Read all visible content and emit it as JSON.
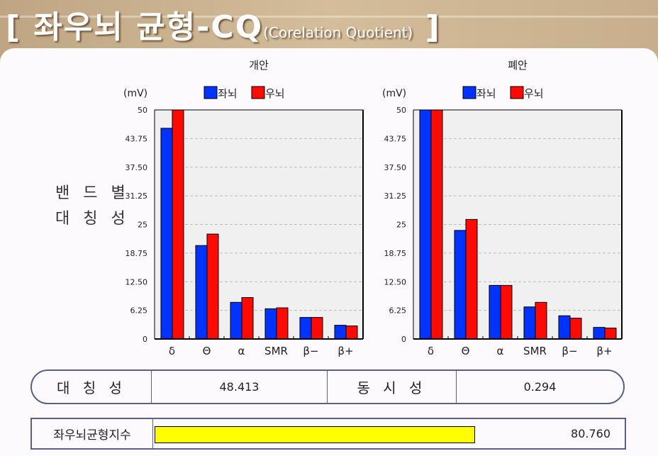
{
  "header": {
    "title_main": "[ 좌우뇌 균형-CQ",
    "title_sub": "(Corelation Quotient)",
    "title_end": " ]"
  },
  "side_label": {
    "line1": "밴 드 별",
    "line2": "대 칭 성"
  },
  "colors": {
    "left": "#0033ff",
    "right": "#ff0a00",
    "plot_bg": "#f0f0f0",
    "index_bar": "#ffff00"
  },
  "chart_data": [
    {
      "type": "bar",
      "title": "개안",
      "ylabel": "(mV)",
      "ylim": [
        0,
        50
      ],
      "grid": true,
      "yticks": [
        "0",
        "6.25",
        "12.50",
        "18.75",
        "25",
        "31.25",
        "37.50",
        "43.75",
        "50"
      ],
      "categories": [
        "δ",
        "Θ",
        "α",
        "SMR",
        "β−",
        "β+"
      ],
      "legend": [
        "좌뇌",
        "우뇌"
      ],
      "series": [
        {
          "name": "좌뇌",
          "values": [
            46.0,
            20.4,
            8.0,
            6.6,
            4.7,
            3.0
          ]
        },
        {
          "name": "우뇌",
          "values": [
            50,
            22.9,
            9.05,
            6.8,
            4.7,
            2.85
          ]
        }
      ]
    },
    {
      "type": "bar",
      "title": "폐안",
      "ylabel": "(mV)",
      "ylim": [
        0,
        50
      ],
      "grid": true,
      "yticks": [
        "0",
        "6.25",
        "12.50",
        "18.75",
        "25",
        "31.25",
        "37.50",
        "43.75",
        "50"
      ],
      "categories": [
        "δ",
        "Θ",
        "α",
        "SMR",
        "β−",
        "β+"
      ],
      "legend": [
        "좌뇌",
        "우뇌"
      ],
      "series": [
        {
          "name": "좌뇌",
          "values": [
            50,
            23.7,
            11.7,
            7.0,
            5.07,
            2.53
          ]
        },
        {
          "name": "우뇌",
          "values": [
            50,
            26.1,
            11.7,
            8.0,
            4.55,
            2.38
          ]
        }
      ]
    }
  ],
  "summary": {
    "symmetry_label": "대 칭 성",
    "symmetry_value": "48.413",
    "sync_label": "동 시 성",
    "sync_value": "0.294"
  },
  "index": {
    "label": "좌우뇌균형지수",
    "value": "80.760",
    "bar_fill_percent": 68
  }
}
